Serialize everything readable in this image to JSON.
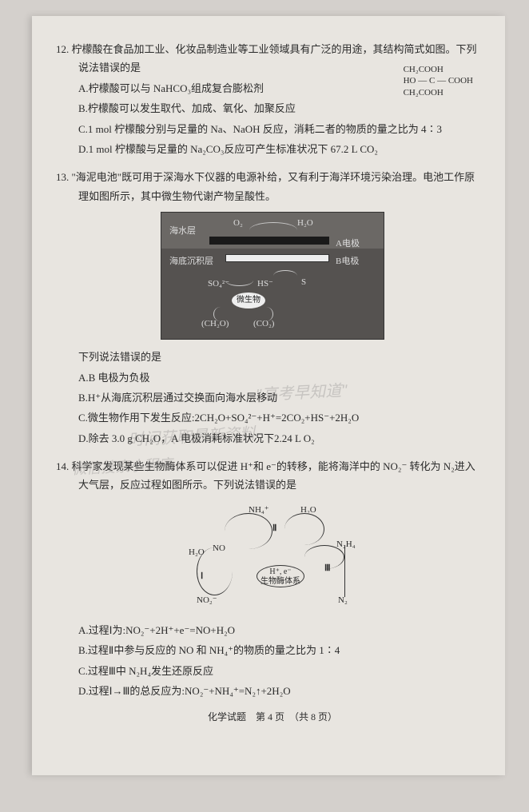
{
  "q12": {
    "num": "12.",
    "text": "柠檬酸在食品加工业、化妆品制造业等工业领域具有广泛的用途，其结构简式如图。下列",
    "text2": "说法错误的是",
    "struct": {
      "l1": "CH₂COOH",
      "l2": "HO — C — COOH",
      "l3": "CH₂COOH"
    },
    "A": "A.柠檬酸可以与 NaHCO₃组成复合膨松剂",
    "B": "B.柠檬酸可以发生取代、加成、氧化、加聚反应",
    "C": "C.1 mol 柠檬酸分别与足量的 Na、NaOH 反应，消耗二者的物质的量之比为 4∶3",
    "D": "D.1 mol 柠檬酸与足量的 Na₂CO₃反应可产生标准状况下 67.2 L CO₂"
  },
  "q13": {
    "num": "13.",
    "text": "\"海泥电池\"既可用于深海水下仪器的电源补给，又有利于海洋环境污染治理。电池工作原",
    "text2": "理如图所示，其中微生物代谢产物呈酸性。",
    "fig": {
      "sea": "海水层",
      "o2": "O₂",
      "h2o": "H₂O",
      "elecA": "A电极",
      "sed": "海底沉积层",
      "elecB": "B电极",
      "so4": "SO₄²⁻",
      "hs": "HS⁻",
      "s": "S",
      "microbe": "微生物",
      "ch2o": "(CH₂O)",
      "co2": "(CO₂)"
    },
    "sub": "下列说法错误的是",
    "A": "A.B 电极为负极",
    "B": "B.H⁺从海底沉积层通过交换面向海水层移动",
    "C": "C.微生物作用下发生反应:2CH₂O+SO₄²⁻+H⁺=2CO₂+HS⁻+2H₂O",
    "D": "D.除去 3.0 g CH₂O，A 电极消耗标准状况下2.24 L O₂"
  },
  "q14": {
    "num": "14.",
    "text": "科学家发现某些生物酶体系可以促进 H⁺和 e⁻的转移，能将海洋中的 NO₂⁻ 转化为 N₂进入",
    "text2": "大气层，反应过程如图所示。下列说法错误的是",
    "fig": {
      "bio1": "H⁺, e⁻",
      "bio2": "生物酶体系",
      "no": "NO",
      "no2": "NO₂⁻",
      "nh4": "NH₄⁺",
      "h2o": "H₂O",
      "n2h4": "N₂H₄",
      "n2": "N₂",
      "r1": "Ⅰ",
      "r2": "Ⅱ",
      "r3": "Ⅲ"
    },
    "A": "A.过程Ⅰ为:NO₂⁻+2H⁺+e⁻=NO+H₂O",
    "B": "B.过程Ⅱ中参与反应的 NO 和 NH₄⁺的物质的量之比为 1∶4",
    "C": "C.过程Ⅲ中 N₂H₄发生还原反应",
    "D": "D.过程Ⅰ→Ⅲ的总反应为:NO₂⁻+NH₄⁺=N₂↑+2H₂O"
  },
  "footer": "化学试题　第 4 页　（共 8 页）",
  "watermarks": {
    "w1": "\"高考早知道\"",
    "w2": "时间获取最新资料",
    "w3": "微信搜索小程序"
  }
}
